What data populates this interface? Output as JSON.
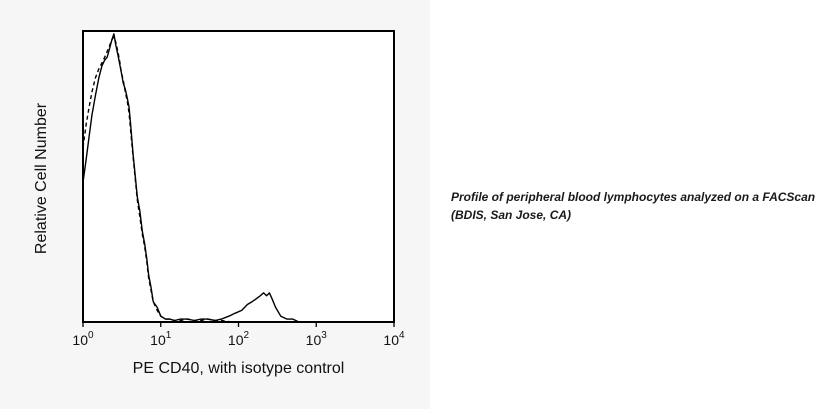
{
  "caption": "Profile of peripheral blood lymphocytes analyzed on a FACScan (BDIS, San Jose, CA)",
  "chart_data": {
    "type": "line",
    "title": "",
    "xlabel": "PE CD40, with isotype control",
    "ylabel": "Relative Cell Number",
    "x_scale": "log",
    "xlim": [
      1,
      10000
    ],
    "ylim": [
      0,
      100
    ],
    "x_ticks": [
      {
        "base": "10",
        "exp": "0",
        "value": 1
      },
      {
        "base": "10",
        "exp": "1",
        "value": 10
      },
      {
        "base": "10",
        "exp": "2",
        "value": 100
      },
      {
        "base": "10",
        "exp": "3",
        "value": 1000
      },
      {
        "base": "10",
        "exp": "4",
        "value": 10000
      }
    ],
    "grid": false,
    "series": [
      {
        "style": "solid",
        "color": "#000000",
        "x": [
          1.0,
          1.1,
          1.2,
          1.3,
          1.45,
          1.6,
          1.75,
          1.9,
          2.05,
          2.2,
          2.35,
          2.5,
          2.65,
          2.8,
          2.95,
          3.1,
          3.3,
          3.5,
          3.7,
          3.9,
          4.1,
          4.4,
          4.7,
          5.0,
          5.4,
          5.8,
          6.2,
          6.6,
          7.0,
          7.5,
          8.0,
          9.0,
          10.0,
          11.5,
          13,
          15,
          18,
          22,
          27,
          33,
          40,
          50,
          60,
          75,
          90,
          110,
          130,
          150,
          170,
          190,
          210,
          230,
          250,
          270,
          300,
          350,
          420,
          500,
          600
        ],
        "y": [
          48,
          56,
          64,
          71,
          78,
          84,
          88,
          90,
          91,
          94,
          97,
          99,
          95,
          92,
          89,
          86,
          82,
          80,
          77,
          74,
          68,
          58,
          50,
          43,
          38,
          31,
          27,
          22,
          16,
          12,
          7,
          5,
          2,
          1,
          1,
          0.5,
          1,
          1,
          0.5,
          1,
          1,
          0.5,
          1,
          2,
          3,
          4,
          6,
          7,
          8,
          9,
          10,
          9,
          10,
          8,
          5,
          2,
          1,
          1,
          0
        ]
      },
      {
        "style": "dashed",
        "color": "#000000",
        "x": [
          1.0,
          1.1,
          1.2,
          1.3,
          1.45,
          1.6,
          1.75,
          1.9,
          2.05,
          2.2,
          2.35,
          2.5,
          2.65,
          2.8,
          2.95,
          3.1,
          3.3,
          3.5,
          3.7,
          3.9,
          4.1,
          4.4,
          4.7,
          5.0,
          5.4,
          5.8,
          6.2,
          6.6,
          7.0,
          7.5,
          8.0,
          9.0,
          10.0,
          11.5,
          13,
          15,
          18,
          22,
          27,
          33,
          40,
          50,
          60,
          80,
          100
        ],
        "y": [
          60,
          68,
          74,
          79,
          84,
          87,
          89,
          91,
          93,
          95,
          97,
          98,
          96,
          93,
          90,
          86,
          83,
          79,
          76,
          72,
          66,
          57,
          49,
          42,
          36,
          30,
          26,
          21,
          15,
          11,
          7,
          4,
          2,
          1,
          1,
          0.5,
          0.5,
          1,
          0.5,
          0.5,
          1,
          0.5,
          0.5,
          0,
          0
        ]
      }
    ]
  }
}
